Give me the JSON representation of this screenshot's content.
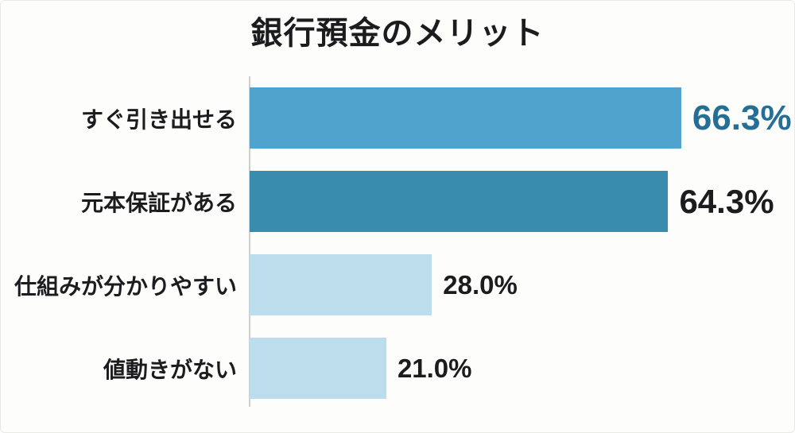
{
  "page": {
    "background": "#fdfdfc",
    "text_color": "#1c1c1e"
  },
  "chart_data": {
    "type": "bar",
    "orientation": "horizontal",
    "title": "銀行預金のメリット",
    "categories": [
      "すぐ引き出せる",
      "元本保証がある",
      "仕組みが分かりやすい",
      "値動きがない"
    ],
    "values": [
      66.3,
      64.3,
      28.0,
      21.0
    ],
    "value_labels": [
      "66.3%",
      "64.3%",
      "28.0%",
      "21.0%"
    ],
    "bar_colors": [
      "#4fa3cc",
      "#3a8cae",
      "#bcdeec",
      "#bcdeec"
    ],
    "value_styles": [
      {
        "color": "#256e96",
        "size": 44
      },
      {
        "color": "#1c1c1e",
        "size": 42
      },
      {
        "color": "#1c1c1e",
        "size": 33
      },
      {
        "color": "#1c1c1e",
        "size": 33
      }
    ],
    "xlim": [
      0,
      80
    ],
    "xlabel": "",
    "ylabel": "",
    "grid": false,
    "legend": false,
    "axis_line_color": "#cfcfcc"
  }
}
